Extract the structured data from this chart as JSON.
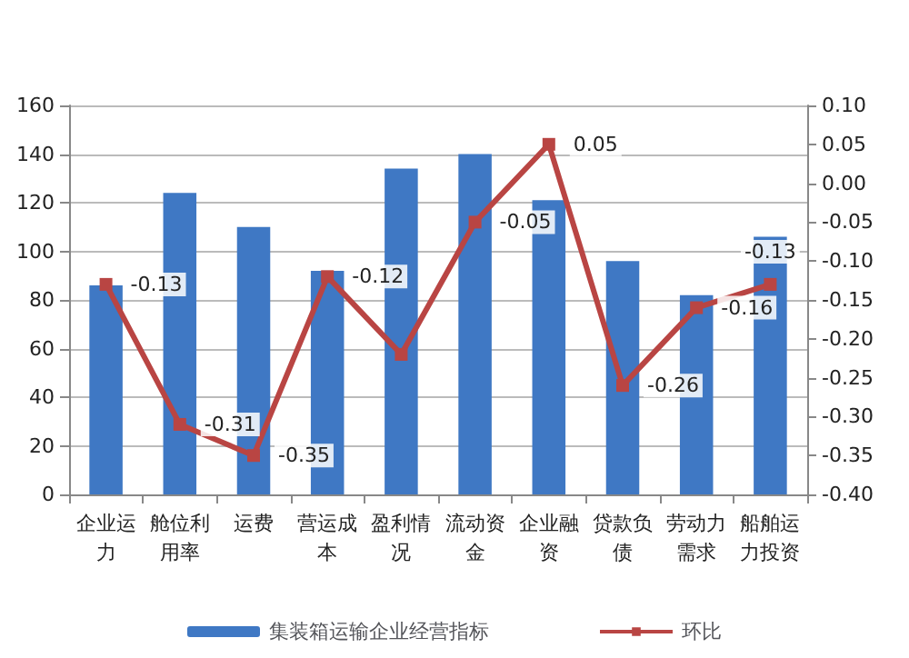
{
  "chart_data": {
    "type": "bar",
    "categories": [
      "企业运力",
      "舱位利用率",
      "运费",
      "营运成本",
      "盈利情况",
      "流动资金",
      "企业融资",
      "贷款负债",
      "劳动力需求",
      "船舶运力投资"
    ],
    "series": [
      {
        "name": "集装箱运输企业经营指标",
        "color": "#3f78c4",
        "values": [
          86,
          124,
          110,
          92,
          134,
          140,
          121,
          96,
          82,
          106
        ]
      },
      {
        "name": "环比",
        "type": "line",
        "axis": "y2",
        "color": "#b94543",
        "marker": "square",
        "values": [
          -0.13,
          -0.31,
          -0.35,
          -0.12,
          -0.22,
          -0.05,
          0.05,
          -0.26,
          -0.16,
          -0.13
        ],
        "value_labels": [
          "-0.13",
          "-0.31",
          "-0.35",
          "-0.12",
          null,
          "-0.05",
          "0.05",
          "-0.26",
          "-0.16",
          "-0.13"
        ]
      }
    ],
    "ylim": [
      0,
      160
    ],
    "yticks": [
      0,
      20,
      40,
      60,
      80,
      100,
      120,
      140,
      160
    ],
    "y2lim": [
      -0.4,
      0.1
    ],
    "y2ticks": [
      {
        "value": -0.4,
        "label": "-0.40"
      },
      {
        "value": -0.35,
        "label": "-0.35"
      },
      {
        "value": -0.3,
        "label": "-0.30"
      },
      {
        "value": -0.25,
        "label": "-0.25"
      },
      {
        "value": -0.2,
        "label": "-0.20"
      },
      {
        "value": -0.15,
        "label": "-0.15"
      },
      {
        "value": -0.1,
        "label": "-0.10"
      },
      {
        "value": -0.05,
        "label": "-0.05"
      },
      {
        "value": 0,
        "label": "0.00"
      },
      {
        "value": 0.05,
        "label": "0.05"
      },
      {
        "value": 0.1,
        "label": "0.10"
      }
    ],
    "grid": "y",
    "legend": "bottom"
  }
}
